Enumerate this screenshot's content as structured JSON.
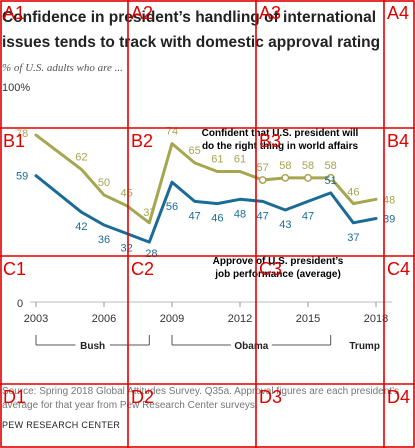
{
  "chart_data": {
    "type": "line",
    "title_lines": [
      "Confidence in president’s handling of international",
      "issues tends to track with domestic approval rating"
    ],
    "subtitle": "% of U.S. adults who are ...",
    "top_label": "100%",
    "zero_label": "0",
    "x_ticks": [
      "2003",
      "2006",
      "2009",
      "2012",
      "2015",
      "2018"
    ],
    "ylim": [
      0,
      100
    ],
    "series": [
      {
        "name": "Confident that U.S. president will do the right thing in world affairs",
        "label_lines": [
          "Confident that U.S. president will",
          "do the right thing in world affairs"
        ],
        "color": "#a6a550",
        "points": [
          {
            "x": 2003,
            "y": 78
          },
          {
            "x": 2005,
            "y": 62
          },
          {
            "x": 2006,
            "y": 50
          },
          {
            "x": 2007,
            "y": 45
          },
          {
            "x": 2008,
            "y": 37
          },
          {
            "x": 2009,
            "y": 74
          },
          {
            "x": 2010,
            "y": 65
          },
          {
            "x": 2011,
            "y": 61
          },
          {
            "x": 2012,
            "y": 61
          },
          {
            "x": 2013,
            "y": 57
          },
          {
            "x": 2014,
            "y": 58
          },
          {
            "x": 2015,
            "y": 58
          },
          {
            "x": 2016,
            "y": 58
          },
          {
            "x": 2017,
            "y": 46
          },
          {
            "x": 2018,
            "y": 48
          }
        ]
      },
      {
        "name": "Approve of U.S. president’s job performance (average)",
        "label_lines": [
          "Approve of U.S. president’s",
          "job performance (average)"
        ],
        "color": "#1a6c97",
        "points": [
          {
            "x": 2003,
            "y": 59
          },
          {
            "x": 2005,
            "y": 42
          },
          {
            "x": 2006,
            "y": 36
          },
          {
            "x": 2007,
            "y": 32
          },
          {
            "x": 2008,
            "y": 28
          },
          {
            "x": 2009,
            "y": 56
          },
          {
            "x": 2010,
            "y": 47
          },
          {
            "x": 2011,
            "y": 46
          },
          {
            "x": 2012,
            "y": 48
          },
          {
            "x": 2013,
            "y": 47
          },
          {
            "x": 2014,
            "y": 43
          },
          {
            "x": 2015,
            "y": 47
          },
          {
            "x": 2016,
            "y": 51
          },
          {
            "x": 2017,
            "y": 37
          },
          {
            "x": 2018,
            "y": 39
          }
        ]
      }
    ],
    "presidents": [
      {
        "name": "Bush",
        "start": 2003,
        "end": 2008
      },
      {
        "name": "Obama",
        "start": 2009,
        "end": 2016
      },
      {
        "name": "Trump",
        "start": 2017,
        "end": 2018
      }
    ],
    "source_lines": [
      "Source: Spring 2018 Global Attitudes Survey. Q35a. Approval figures are each president’s",
      "average for that year from Pew Research Center surveys."
    ],
    "org": "PEW RESEARCH CENTER"
  },
  "grid_overlay": {
    "color": "#e00000",
    "cells": [
      [
        "A1",
        "A2",
        "A3",
        "A4"
      ],
      [
        "B1",
        "B2",
        "B3",
        "B4"
      ],
      [
        "C1",
        "C2",
        "C3",
        "C4"
      ],
      [
        "D1",
        "D2",
        "D3",
        "D4"
      ]
    ]
  }
}
